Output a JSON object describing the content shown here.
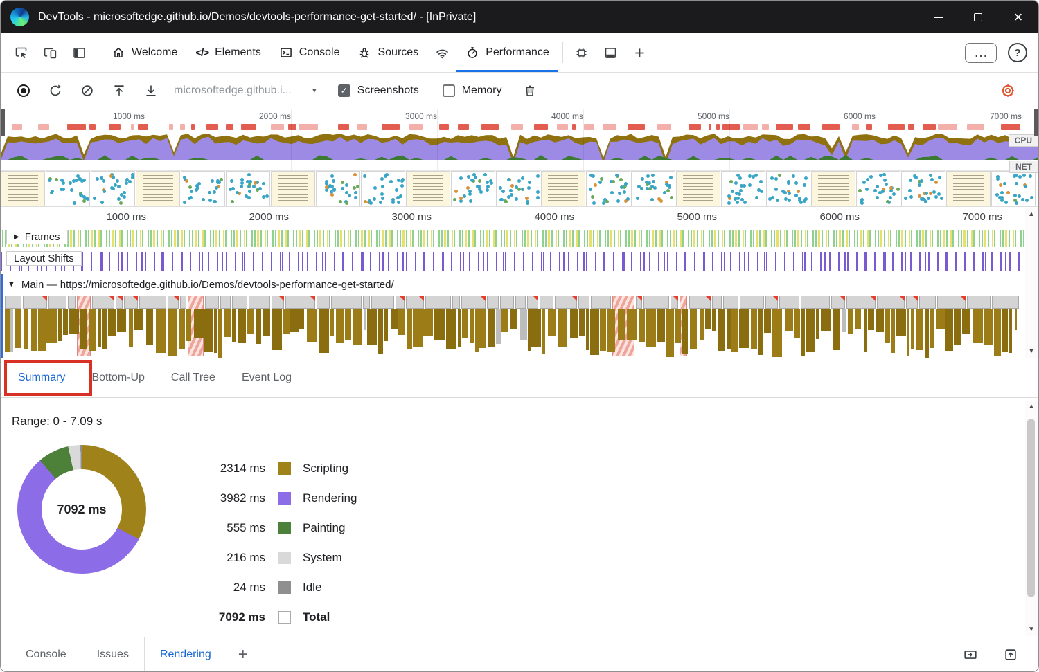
{
  "window": {
    "title": "DevTools - microsoftedge.github.io/Demos/devtools-performance-get-started/ - [InPrivate]"
  },
  "main_toolbar": {
    "tabs": [
      {
        "label": "Welcome"
      },
      {
        "label": "Elements"
      },
      {
        "label": "Console"
      },
      {
        "label": "Sources"
      },
      {
        "label": "Performance",
        "active": true
      }
    ],
    "more_label": "…",
    "help_label": "?"
  },
  "perf_controls": {
    "page_selector": "microsoftedge.github.i...",
    "screenshots_label": "Screenshots",
    "screenshots_checked": true,
    "check_glyph": "✓",
    "memory_label": "Memory",
    "memory_checked": false
  },
  "overview": {
    "ticks": [
      "1000 ms",
      "2000 ms",
      "3000 ms",
      "4000 ms",
      "5000 ms",
      "6000 ms",
      "7000 ms"
    ],
    "cpu_label": "CPU",
    "net_label": "NET"
  },
  "timeline": {
    "ticks": [
      "1000 ms",
      "2000 ms",
      "3000 ms",
      "4000 ms",
      "5000 ms",
      "6000 ms",
      "7000 ms"
    ],
    "frames_label": "Frames",
    "frames_collapsed_glyph": "▶",
    "layout_shifts_label": "Layout Shifts",
    "main_expanded_glyph": "▼",
    "main_track_label": "Main — https://microsoftedge.github.io/Demos/devtools-performance-get-started/"
  },
  "panel_tabs": [
    {
      "label": "Summary",
      "active": true
    },
    {
      "label": "Bottom-Up"
    },
    {
      "label": "Call Tree"
    },
    {
      "label": "Event Log"
    }
  ],
  "summary": {
    "range_label": "Range: 0 - 7.09 s",
    "donut_total": "7092 ms",
    "categories": [
      {
        "value": "2314 ms",
        "ms": 2314,
        "label": "Scripting",
        "color": "#a0821a"
      },
      {
        "value": "3982 ms",
        "ms": 3982,
        "label": "Rendering",
        "color": "#8d6ce8"
      },
      {
        "value": "555 ms",
        "ms": 555,
        "label": "Painting",
        "color": "#4d8038"
      },
      {
        "value": "216 ms",
        "ms": 216,
        "label": "System",
        "color": "#d9d9d9"
      },
      {
        "value": "24 ms",
        "ms": 24,
        "label": "Idle",
        "color": "#8f8f8f"
      }
    ],
    "total_row": {
      "value": "7092 ms",
      "label": "Total"
    }
  },
  "drawer": {
    "tabs": [
      {
        "label": "Console"
      },
      {
        "label": "Issues"
      },
      {
        "label": "Rendering",
        "active": true
      }
    ]
  },
  "colors": {
    "accent_blue": "#1a73e8",
    "annotation_red": "#d93025",
    "long_task_red": "#e25c50",
    "cpu_scripting": "#8f7110",
    "cpu_rendering": "#9d8ae4",
    "cpu_painting": "#3c7a33",
    "layout_shift_purple": "#7a5ad0"
  }
}
